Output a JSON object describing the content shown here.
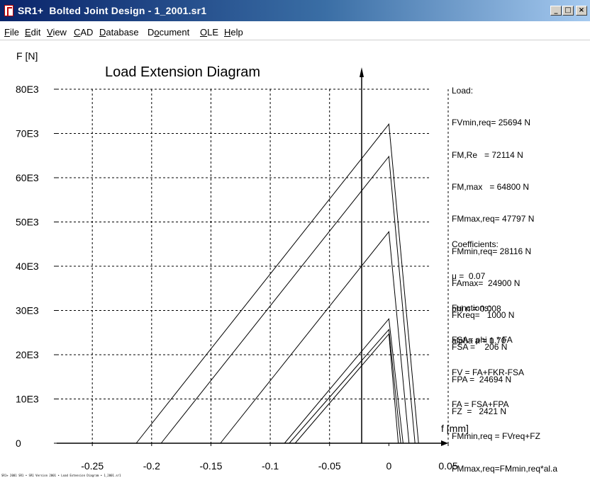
{
  "window": {
    "title": "SR1+  Bolted Joint Design - 1_2001.sr1",
    "min_label": "_",
    "max_label": "□",
    "close_label": "×"
  },
  "menu": [
    {
      "pre": "",
      "u": "F",
      "post": "ile"
    },
    {
      "pre": "",
      "u": "E",
      "post": "dit"
    },
    {
      "pre": "",
      "u": "V",
      "post": "iew"
    },
    {
      "pre": "",
      "u": "C",
      "post": "AD"
    },
    {
      "pre": "",
      "u": "D",
      "post": "atabase"
    },
    {
      "pre": "D",
      "u": "o",
      "post": "cument"
    },
    {
      "pre": "",
      "u": "O",
      "post": "LE"
    },
    {
      "pre": "",
      "u": "H",
      "post": "elp"
    }
  ],
  "chart_data": {
    "type": "line",
    "title": "Load Extension Diagram",
    "ylabel": "F [N]",
    "xlabel": "f [mm]",
    "xlim": [
      -0.28,
      0.05
    ],
    "ylim": [
      0,
      80000
    ],
    "x_ticks": [
      -0.25,
      -0.2,
      -0.15,
      -0.1,
      -0.05,
      0,
      0.05
    ],
    "x_tick_labels": [
      "-0.25",
      "-0.2",
      "-0.15",
      "-0.1",
      "-0.05",
      "0",
      "0.05"
    ],
    "y_ticks": [
      0,
      10000,
      20000,
      30000,
      40000,
      50000,
      60000,
      70000,
      80000
    ],
    "y_tick_labels": [
      "0",
      "10E3",
      "20E3",
      "30E3",
      "40E3",
      "50E3",
      "60E3",
      "70E3",
      "80E3"
    ],
    "grid": true,
    "series": [
      {
        "x": [
          -0.213,
          0,
          0.025,
          0
        ],
        "y": [
          0,
          72114,
          0,
          0
        ]
      },
      {
        "x": [
          -0.192,
          0,
          0.022,
          0
        ],
        "y": [
          0,
          64800,
          0,
          0
        ]
      },
      {
        "x": [
          -0.142,
          0,
          0.017,
          0
        ],
        "y": [
          0,
          47797,
          0,
          0
        ]
      },
      {
        "x": [
          -0.088,
          0,
          0.012,
          0
        ],
        "y": [
          0,
          28116,
          0,
          0
        ]
      },
      {
        "x": [
          -0.084,
          0,
          0.01,
          0
        ],
        "y": [
          0,
          25694,
          0,
          0
        ]
      },
      {
        "x": [
          -0.079,
          0,
          0.008,
          0
        ],
        "y": [
          0,
          24694,
          0,
          0
        ]
      }
    ]
  },
  "info": {
    "load_header": "Load:",
    "load_lines": [
      "FVmin,req= 25694 N",
      "FM,Re   = 72114 N",
      "FM,max   = 64800 N",
      "FMmax,req= 47797 N",
      "FMmin,req= 28116 N",
      "FAmax=  24900 N",
      "FKreq=   1000 N",
      "FSA =    206 N",
      "FPA =  24694 N",
      "FZ  =   2421 N"
    ],
    "coeff_header": "Coefficients:",
    "coeff_lines": [
      "μ =  0.07",
      "phi n = 0.008",
      "alpha a = 1.70"
    ],
    "func_header": "Functions:",
    "func_lines": [
      "FSA= phi n * FA",
      "FV = FA+FKR-FSA",
      "FA = FSA+FPA",
      "FMmin,req = FVreq+FZ",
      "FMmax,req=FMmin,req*al.a"
    ]
  },
  "footer": {
    "text": "SR1+ 2001 SR1 • SR1 Version 2001 • Load Extension Diagram • 1_2001.sr1"
  }
}
